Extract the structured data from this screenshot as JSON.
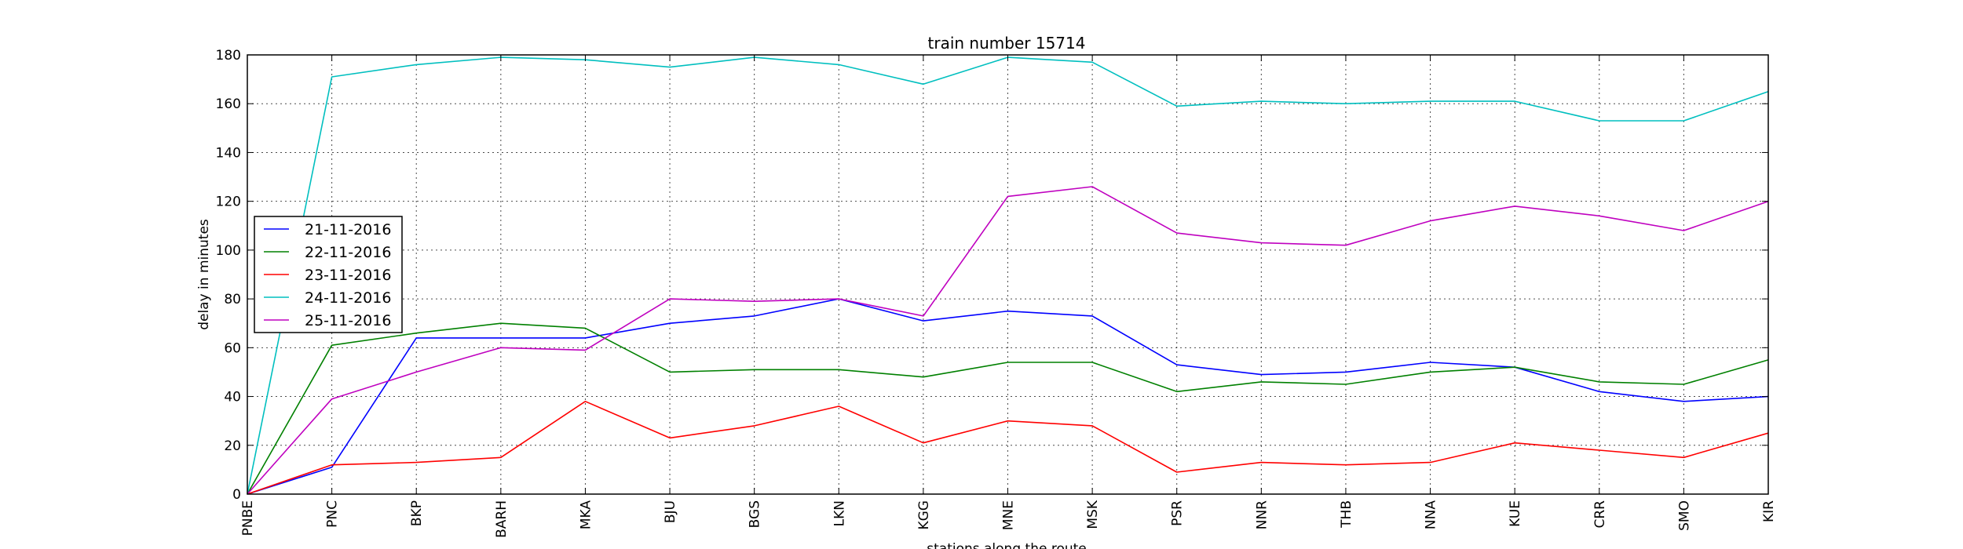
{
  "chart_data": {
    "type": "line",
    "title": "train number 15714",
    "xlabel": "stations along the route",
    "ylabel": "delay in minutes",
    "ylim": [
      0,
      180
    ],
    "yticks": [
      0,
      20,
      40,
      60,
      80,
      100,
      120,
      140,
      160,
      180
    ],
    "grid": true,
    "legend_position": "center-left",
    "categories": [
      "PNBE",
      "PNC",
      "BKP",
      "BARH",
      "MKA",
      "BJU",
      "BGS",
      "LKN",
      "KGG",
      "MNE",
      "MSK",
      "PSR",
      "NNR",
      "THB",
      "NNA",
      "KUE",
      "CRR",
      "SMO",
      "KIR"
    ],
    "series": [
      {
        "name": "21-11-2016",
        "color": "#0000ff",
        "values": [
          0,
          11,
          64,
          64,
          64,
          70,
          73,
          80,
          71,
          75,
          73,
          53,
          49,
          50,
          54,
          52,
          42,
          38,
          40
        ]
      },
      {
        "name": "22-11-2016",
        "color": "#008000",
        "values": [
          0,
          61,
          66,
          70,
          68,
          50,
          51,
          51,
          48,
          54,
          54,
          42,
          46,
          45,
          50,
          52,
          46,
          45,
          55
        ]
      },
      {
        "name": "23-11-2016",
        "color": "#ff0000",
        "values": [
          0,
          12,
          13,
          15,
          38,
          23,
          28,
          36,
          21,
          30,
          28,
          9,
          13,
          12,
          13,
          21,
          18,
          15,
          25
        ]
      },
      {
        "name": "24-11-2016",
        "color": "#00bfbf",
        "values": [
          0,
          171,
          176,
          179,
          178,
          175,
          179,
          176,
          168,
          179,
          177,
          159,
          161,
          160,
          161,
          161,
          153,
          153,
          165
        ]
      },
      {
        "name": "25-11-2016",
        "color": "#bf00bf",
        "values": [
          0,
          39,
          50,
          60,
          59,
          80,
          79,
          80,
          73,
          122,
          126,
          107,
          103,
          102,
          112,
          118,
          114,
          108,
          120
        ]
      }
    ]
  }
}
